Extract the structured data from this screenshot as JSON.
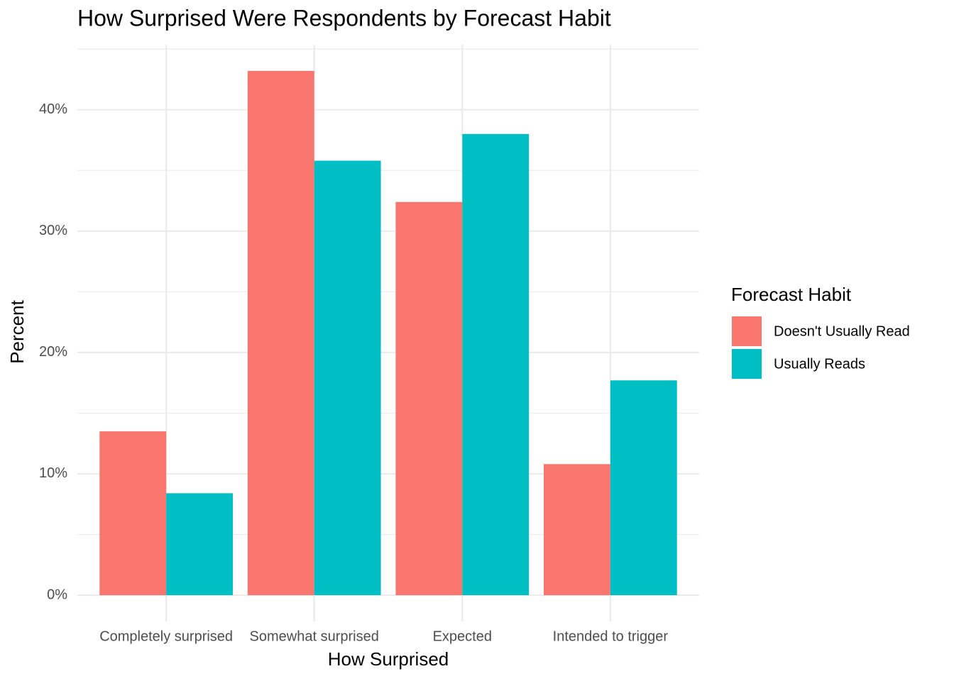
{
  "chart_data": {
    "type": "bar",
    "title": "How Surprised Were Respondents by Forecast Habit",
    "x_label": "How Surprised",
    "y_label": "Percent",
    "categories": [
      "Completely surprised",
      "Somewhat surprised",
      "Expected",
      "Intended to trigger"
    ],
    "series": [
      {
        "name": "Doesn't Usually Read",
        "color": "#f8766d",
        "values": [
          13.5,
          43.2,
          32.4,
          10.8
        ]
      },
      {
        "name": "Usually Reads",
        "color": "#00bfc4",
        "values": [
          8.4,
          35.8,
          38.0,
          17.7
        ]
      }
    ],
    "ylim": [
      -2.16,
      45.36
    ],
    "yticks": [
      {
        "value": 0,
        "label": "0%"
      },
      {
        "value": 10,
        "label": "10%"
      },
      {
        "value": 20,
        "label": "20%"
      },
      {
        "value": 30,
        "label": "30%"
      },
      {
        "value": 40,
        "label": "40%"
      }
    ],
    "minor_yticks": [
      5,
      15,
      25,
      35,
      45
    ],
    "grid": true,
    "legend_title": "Forecast Habit",
    "legend_position": "right"
  }
}
